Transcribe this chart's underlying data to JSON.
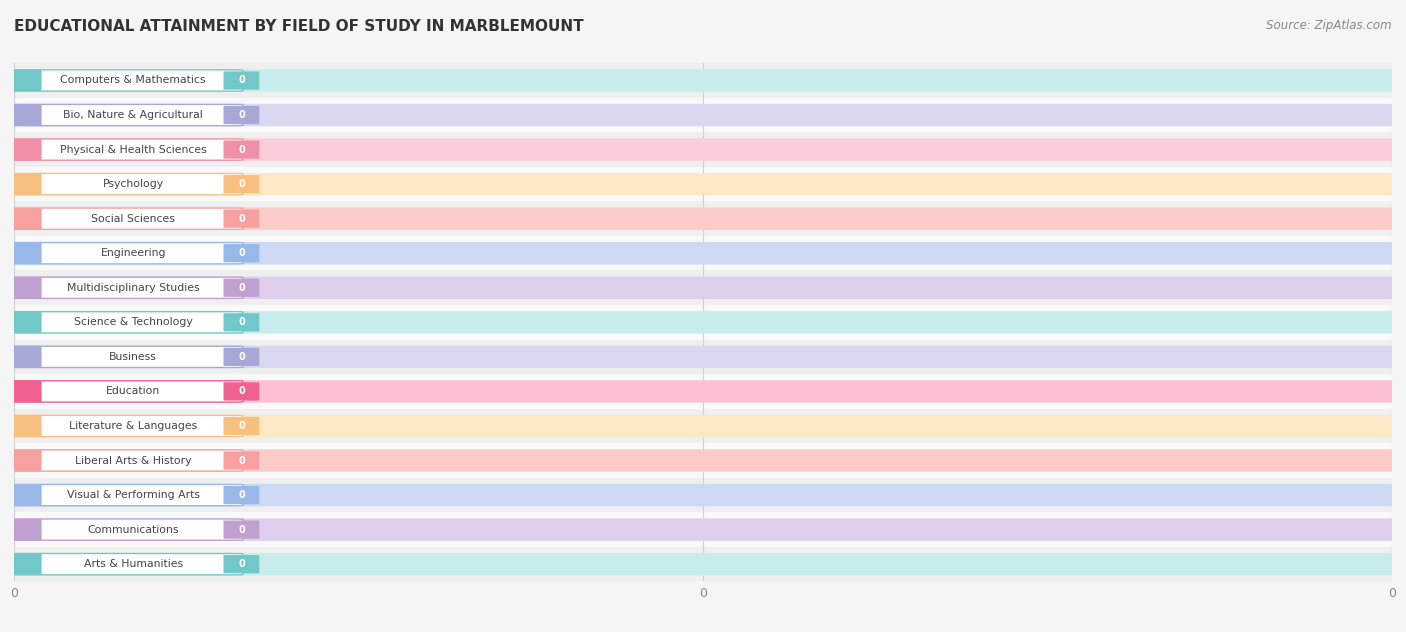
{
  "title": "Educational Attainment by Field of Study in Marblemount",
  "source": "Source: ZipAtlas.com",
  "categories": [
    "Computers & Mathematics",
    "Bio, Nature & Agricultural",
    "Physical & Health Sciences",
    "Psychology",
    "Social Sciences",
    "Engineering",
    "Multidisciplinary Studies",
    "Science & Technology",
    "Business",
    "Education",
    "Literature & Languages",
    "Liberal Arts & History",
    "Visual & Performing Arts",
    "Communications",
    "Arts & Humanities"
  ],
  "values": [
    0,
    0,
    0,
    0,
    0,
    0,
    0,
    0,
    0,
    0,
    0,
    0,
    0,
    0,
    0
  ],
  "bar_colors": [
    "#72C8C8",
    "#A8A8D8",
    "#F090A8",
    "#F8C080",
    "#F8A0A0",
    "#98B8E8",
    "#C0A0D0",
    "#72C8C8",
    "#A8A8D8",
    "#F06090",
    "#F8C080",
    "#F8A0A0",
    "#98B8E8",
    "#C0A0D0",
    "#72C8C8"
  ],
  "bar_colors_light": [
    "#C8ECEC",
    "#D8D8F0",
    "#FCCCD8",
    "#FCE8C4",
    "#FCCCC8",
    "#CCD8F4",
    "#DED0EC",
    "#C8ECEC",
    "#D8D8F0",
    "#FCC0D4",
    "#FCE8C4",
    "#FCCCC8",
    "#CCD8F4",
    "#DED0EC",
    "#C8ECEC"
  ],
  "background_color": "#f5f5f5",
  "row_bg_even": "#efefef",
  "row_bg_odd": "#f9f9f9",
  "title_fontsize": 11,
  "source_fontsize": 8.5,
  "grid_color": "#d0d0d0",
  "text_color": "#555555",
  "value_color": "#ffffff"
}
